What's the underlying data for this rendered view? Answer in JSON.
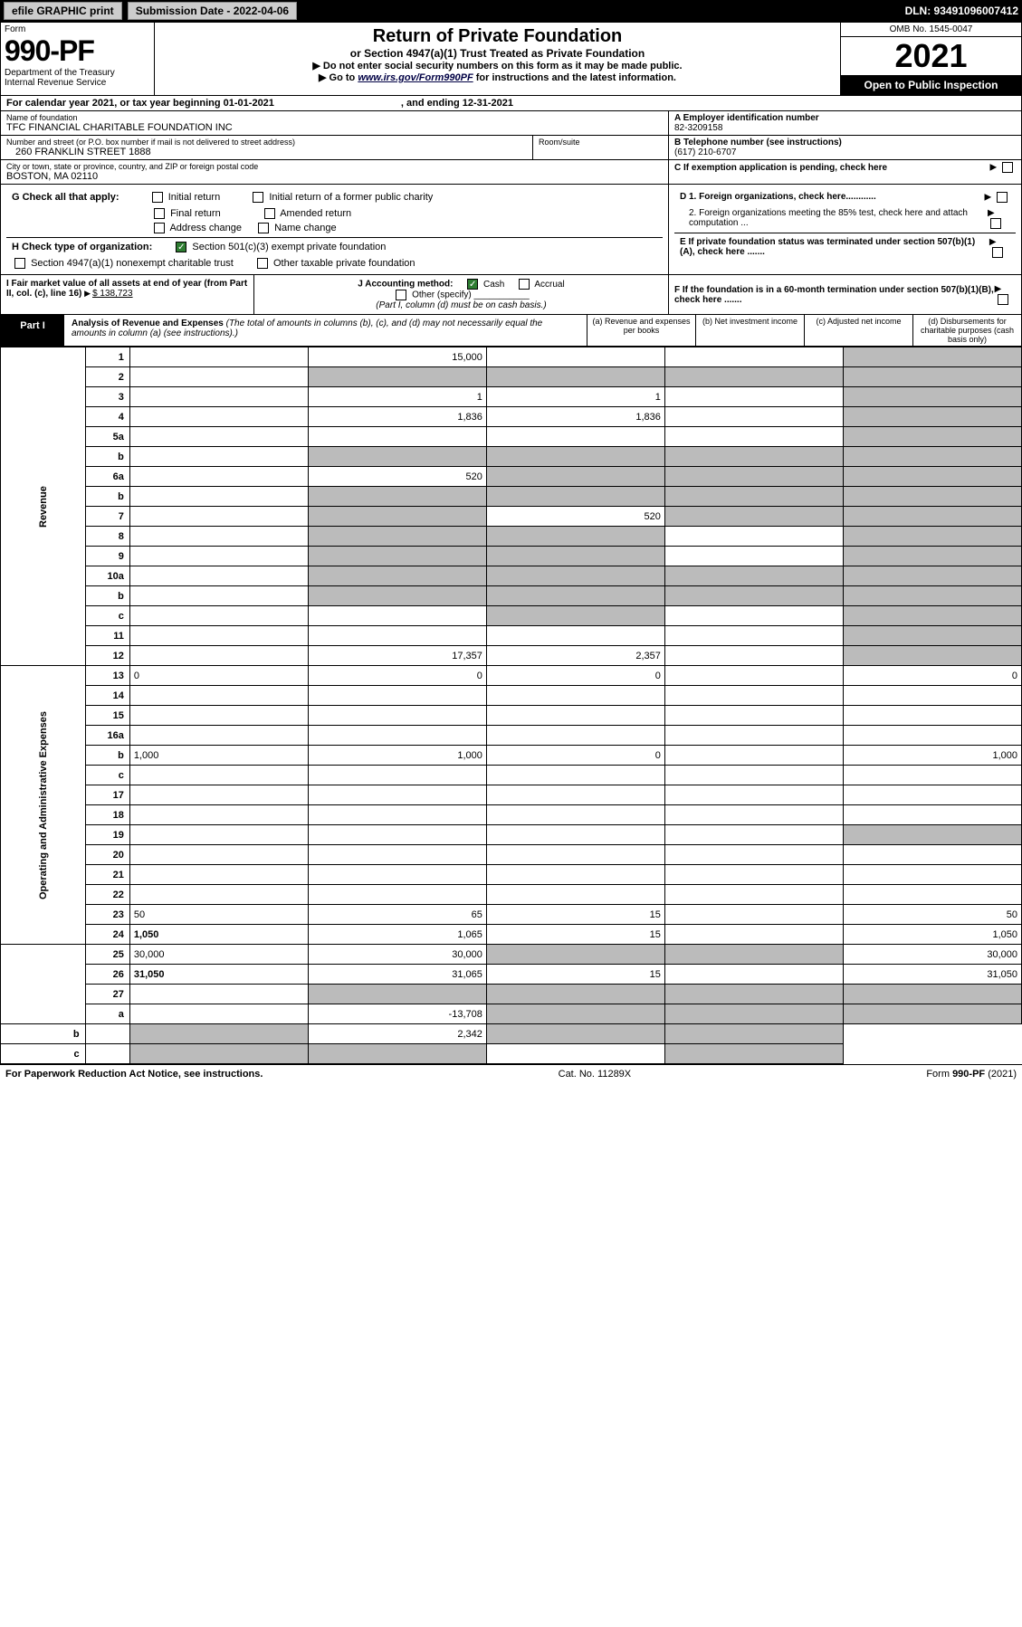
{
  "header": {
    "efile": "efile GRAPHIC print",
    "submission": "Submission Date - 2022-04-06",
    "dln": "DLN: 93491096007412"
  },
  "form": {
    "label": "Form",
    "number": "990-PF",
    "dept1": "Department of the Treasury",
    "dept2": "Internal Revenue Service",
    "title": "Return of Private Foundation",
    "subtitle1": "or Section 4947(a)(1) Trust Treated as Private Foundation",
    "subtitle2": "▶ Do not enter social security numbers on this form as it may be made public.",
    "subtitle3_pre": "▶ Go to ",
    "subtitle3_link": "www.irs.gov/Form990PF",
    "subtitle3_post": " for instructions and the latest information.",
    "omb": "OMB No. 1545-0047",
    "year": "2021",
    "open": "Open to Public Inspection"
  },
  "calendar": {
    "text": "For calendar year 2021, or tax year beginning 01-01-2021",
    "ending": ", and ending 12-31-2021"
  },
  "identity": {
    "name_label": "Name of foundation",
    "name": "TFC FINANCIAL CHARITABLE FOUNDATION INC",
    "addr_label": "Number and street (or P.O. box number if mail is not delivered to street address)",
    "addr": "260 FRANKLIN STREET 1888",
    "room_label": "Room/suite",
    "city_label": "City or town, state or province, country, and ZIP or foreign postal code",
    "city": "BOSTON, MA  02110",
    "ein_label": "A Employer identification number",
    "ein": "82-3209158",
    "tel_label": "B Telephone number (see instructions)",
    "tel": "(617) 210-6707",
    "c_label": "C If exemption application is pending, check here",
    "d1_label": "D 1. Foreign organizations, check here............",
    "d2_label": "2. Foreign organizations meeting the 85% test, check here and attach computation ...",
    "e_label": "E  If private foundation status was terminated under section 507(b)(1)(A), check here .......",
    "f_label": "F  If the foundation is in a 60-month termination under section 507(b)(1)(B), check here .......",
    "g_label": "G Check all that apply:",
    "g_opts": [
      "Initial return",
      "Initial return of a former public charity",
      "Final return",
      "Amended return",
      "Address change",
      "Name change"
    ],
    "h_label": "H Check type of organization:",
    "h_opt1": "Section 501(c)(3) exempt private foundation",
    "h_opt2": "Section 4947(a)(1) nonexempt charitable trust",
    "h_opt3": "Other taxable private foundation",
    "i_label": "I Fair market value of all assets at end of year (from Part II, col. (c), line 16)",
    "i_val": "$  138,723",
    "j_label": "J Accounting method:",
    "j_cash": "Cash",
    "j_accrual": "Accrual",
    "j_other": "Other (specify)",
    "j_note": "(Part I, column (d) must be on cash basis.)"
  },
  "part1": {
    "tab": "Part I",
    "title": "Analysis of Revenue and Expenses",
    "note": " (The total of amounts in columns (b), (c), and (d) may not necessarily equal the amounts in column (a) (see instructions).)",
    "col_a": "(a)  Revenue and expenses per books",
    "col_b": "(b)  Net investment income",
    "col_c": "(c)  Adjusted net income",
    "col_d": "(d)  Disbursements for charitable purposes (cash basis only)"
  },
  "sections": {
    "revenue": "Revenue",
    "opex": "Operating and Administrative Expenses"
  },
  "rows": [
    {
      "n": "1",
      "d": "",
      "a": "15,000",
      "b": "",
      "c": "",
      "grey_c": false,
      "grey_d": true
    },
    {
      "n": "2",
      "d": "",
      "a": "",
      "b": "",
      "c": "",
      "grey_a": true,
      "grey_b": true,
      "grey_c": true,
      "grey_d": true
    },
    {
      "n": "3",
      "d": "",
      "a": "1",
      "b": "1",
      "c": "",
      "grey_d": true
    },
    {
      "n": "4",
      "d": "",
      "a": "1,836",
      "b": "1,836",
      "c": "",
      "grey_d": true
    },
    {
      "n": "5a",
      "d": "",
      "a": "",
      "b": "",
      "c": "",
      "grey_d": true
    },
    {
      "n": "b",
      "d": "",
      "a": "",
      "b": "",
      "c": "",
      "grey_a": true,
      "grey_b": true,
      "grey_c": true,
      "grey_d": true
    },
    {
      "n": "6a",
      "d": "",
      "a": "520",
      "b": "",
      "c": "",
      "grey_b": true,
      "grey_c": true,
      "grey_d": true
    },
    {
      "n": "b",
      "d": "",
      "a": "",
      "b": "",
      "c": "",
      "grey_a": true,
      "grey_b": true,
      "grey_c": true,
      "grey_d": true
    },
    {
      "n": "7",
      "d": "",
      "a": "",
      "b": "520",
      "c": "",
      "grey_a": true,
      "grey_c": true,
      "grey_d": true
    },
    {
      "n": "8",
      "d": "",
      "a": "",
      "b": "",
      "c": "",
      "grey_a": true,
      "grey_b": true,
      "grey_d": true
    },
    {
      "n": "9",
      "d": "",
      "a": "",
      "b": "",
      "c": "",
      "grey_a": true,
      "grey_b": true,
      "grey_d": true
    },
    {
      "n": "10a",
      "d": "",
      "a": "",
      "b": "",
      "c": "",
      "grey_a": true,
      "grey_b": true,
      "grey_c": true,
      "grey_d": true
    },
    {
      "n": "b",
      "d": "",
      "a": "",
      "b": "",
      "c": "",
      "grey_a": true,
      "grey_b": true,
      "grey_c": true,
      "grey_d": true
    },
    {
      "n": "c",
      "d": "",
      "a": "",
      "b": "",
      "c": "",
      "grey_b": true,
      "grey_d": true
    },
    {
      "n": "11",
      "d": "",
      "a": "",
      "b": "",
      "c": "",
      "grey_d": true
    },
    {
      "n": "12",
      "d": "",
      "a": "17,357",
      "b": "2,357",
      "c": "",
      "bold": true,
      "grey_d": true
    },
    {
      "n": "13",
      "d": "0",
      "a": "0",
      "b": "0",
      "c": ""
    },
    {
      "n": "14",
      "d": "",
      "a": "",
      "b": "",
      "c": ""
    },
    {
      "n": "15",
      "d": "",
      "a": "",
      "b": "",
      "c": ""
    },
    {
      "n": "16a",
      "d": "",
      "a": "",
      "b": "",
      "c": ""
    },
    {
      "n": "b",
      "d": "1,000",
      "a": "1,000",
      "b": "0",
      "c": ""
    },
    {
      "n": "c",
      "d": "",
      "a": "",
      "b": "",
      "c": ""
    },
    {
      "n": "17",
      "d": "",
      "a": "",
      "b": "",
      "c": ""
    },
    {
      "n": "18",
      "d": "",
      "a": "",
      "b": "",
      "c": ""
    },
    {
      "n": "19",
      "d": "",
      "a": "",
      "b": "",
      "c": "",
      "grey_d": true
    },
    {
      "n": "20",
      "d": "",
      "a": "",
      "b": "",
      "c": ""
    },
    {
      "n": "21",
      "d": "",
      "a": "",
      "b": "",
      "c": ""
    },
    {
      "n": "22",
      "d": "",
      "a": "",
      "b": "",
      "c": ""
    },
    {
      "n": "23",
      "d": "50",
      "a": "65",
      "b": "15",
      "c": ""
    },
    {
      "n": "24",
      "d": "1,050",
      "a": "1,065",
      "b": "15",
      "c": "",
      "bold": true
    },
    {
      "n": "25",
      "d": "30,000",
      "a": "30,000",
      "b": "",
      "c": "",
      "grey_b": true,
      "grey_c": true
    },
    {
      "n": "26",
      "d": "31,050",
      "a": "31,065",
      "b": "15",
      "c": "",
      "bold": true
    },
    {
      "n": "27",
      "d": "",
      "a": "",
      "b": "",
      "c": "",
      "grey_a": true,
      "grey_b": true,
      "grey_c": true,
      "grey_d": true
    },
    {
      "n": "a",
      "d": "",
      "a": "-13,708",
      "b": "",
      "c": "",
      "bold": true,
      "grey_b": true,
      "grey_c": true,
      "grey_d": true
    },
    {
      "n": "b",
      "d": "",
      "a": "",
      "b": "2,342",
      "c": "",
      "bold": true,
      "grey_a": true,
      "grey_c": true,
      "grey_d": true
    },
    {
      "n": "c",
      "d": "",
      "a": "",
      "b": "",
      "c": "",
      "bold": true,
      "grey_a": true,
      "grey_b": true,
      "grey_d": true
    }
  ],
  "footer": {
    "left": "For Paperwork Reduction Act Notice, see instructions.",
    "mid": "Cat. No. 11289X",
    "right": "Form 990-PF (2021)"
  }
}
